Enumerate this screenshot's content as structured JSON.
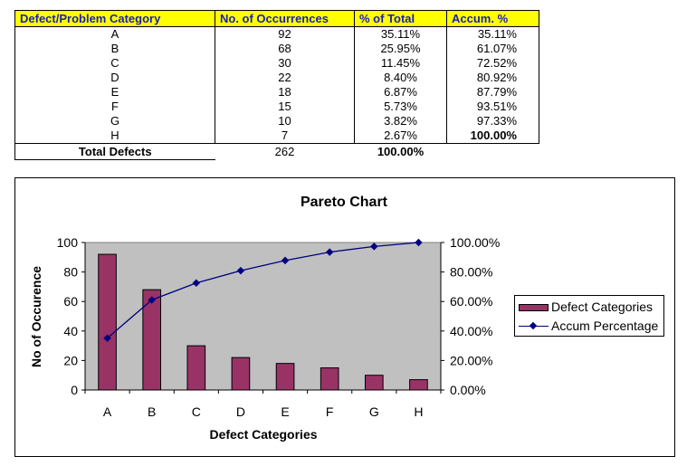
{
  "table": {
    "headers": [
      "Defect/Problem Category",
      "No. of Occurrences",
      "% of Total",
      "Accum. %"
    ],
    "rows": [
      {
        "category": "A",
        "occurrences": "92",
        "pct": "35.11%",
        "accum": "35.11%"
      },
      {
        "category": "B",
        "occurrences": "68",
        "pct": "25.95%",
        "accum": "61.07%"
      },
      {
        "category": "C",
        "occurrences": "30",
        "pct": "11.45%",
        "accum": "72.52%"
      },
      {
        "category": "D",
        "occurrences": "22",
        "pct": "8.40%",
        "accum": "80.92%"
      },
      {
        "category": "E",
        "occurrences": "18",
        "pct": "6.87%",
        "accum": "87.79%"
      },
      {
        "category": "F",
        "occurrences": "15",
        "pct": "5.73%",
        "accum": "93.51%"
      },
      {
        "category": "G",
        "occurrences": "10",
        "pct": "3.82%",
        "accum": "97.33%"
      },
      {
        "category": "H",
        "occurrences": "7",
        "pct": "2.67%",
        "accum": "100.00%"
      }
    ],
    "total": {
      "label": "Total Defects",
      "occurrences": "262",
      "pct": "100.00%"
    }
  },
  "colors": {
    "header_bg": "#ffff00",
    "header_text": "#1b1bc4",
    "bar": "#993366",
    "line": "#000080",
    "plot_bg": "#c0c0c0"
  },
  "chart_data": {
    "type": "bar",
    "title": "Pareto Chart",
    "xlabel": "Defect Categories",
    "ylabel": "No of Occurence",
    "categories": [
      "A",
      "B",
      "C",
      "D",
      "E",
      "F",
      "G",
      "H"
    ],
    "series": [
      {
        "name": "Defect Categories",
        "type": "bar",
        "axis": "left",
        "values": [
          92,
          68,
          30,
          22,
          18,
          15,
          10,
          7
        ]
      },
      {
        "name": "Accum Percentage",
        "type": "line",
        "axis": "right",
        "values": [
          35.11,
          61.07,
          72.52,
          80.92,
          87.79,
          93.51,
          97.33,
          100.0
        ]
      }
    ],
    "ylim": [
      0,
      100
    ],
    "yticks": [
      "0",
      "20",
      "40",
      "60",
      "80",
      "100"
    ],
    "y2lim": [
      0,
      100
    ],
    "y2ticks": [
      "0.00%",
      "20.00%",
      "40.00%",
      "60.00%",
      "80.00%",
      "100.00%"
    ],
    "legend_position": "right",
    "grid": false
  }
}
